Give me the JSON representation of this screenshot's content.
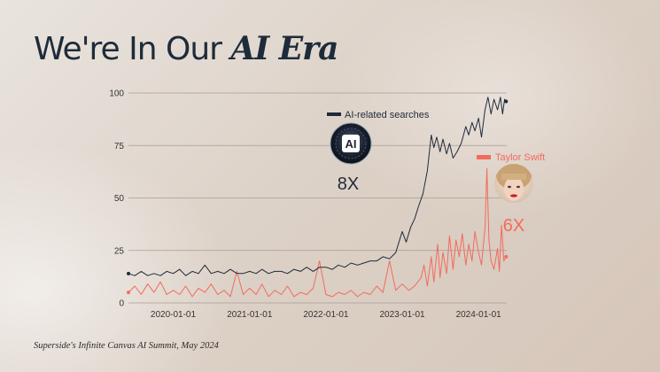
{
  "slide": {
    "title_plain": "We're In Our ",
    "title_emphasis": "AI Era",
    "footer": "Superside's Infinite Canvas AI Summit, May 2024"
  },
  "chart_data": {
    "type": "line",
    "ylim": [
      0,
      100
    ],
    "y_ticks": [
      0,
      25,
      50,
      75,
      100
    ],
    "x_ticks": [
      "2020-01-01",
      "2021-01-01",
      "2022-01-01",
      "2023-01-01",
      "2024-01-01"
    ],
    "x_range": [
      "2019-06-01",
      "2024-05-15"
    ],
    "grid": true,
    "legend_placement": "inline",
    "series": [
      {
        "name": "AI-related searches",
        "color": "#1f2a3a",
        "multiplier_label": "8X",
        "icon_label": "AI",
        "points": [
          [
            "2019-06-01",
            14
          ],
          [
            "2019-07-01",
            13
          ],
          [
            "2019-08-01",
            15
          ],
          [
            "2019-09-01",
            13
          ],
          [
            "2019-10-01",
            14
          ],
          [
            "2019-11-01",
            13
          ],
          [
            "2019-12-01",
            15
          ],
          [
            "2020-01-01",
            14
          ],
          [
            "2020-02-01",
            16
          ],
          [
            "2020-03-01",
            13
          ],
          [
            "2020-04-01",
            15
          ],
          [
            "2020-05-01",
            14
          ],
          [
            "2020-06-01",
            18
          ],
          [
            "2020-07-01",
            14
          ],
          [
            "2020-08-01",
            15
          ],
          [
            "2020-09-01",
            14
          ],
          [
            "2020-10-01",
            16
          ],
          [
            "2020-11-01",
            14
          ],
          [
            "2020-12-01",
            14
          ],
          [
            "2021-01-01",
            15
          ],
          [
            "2021-02-01",
            14
          ],
          [
            "2021-03-01",
            16
          ],
          [
            "2021-04-01",
            14
          ],
          [
            "2021-05-01",
            15
          ],
          [
            "2021-06-01",
            15
          ],
          [
            "2021-07-01",
            14
          ],
          [
            "2021-08-01",
            16
          ],
          [
            "2021-09-01",
            15
          ],
          [
            "2021-10-01",
            17
          ],
          [
            "2021-11-01",
            15
          ],
          [
            "2021-12-01",
            17
          ],
          [
            "2022-01-01",
            17
          ],
          [
            "2022-02-01",
            16
          ],
          [
            "2022-03-01",
            18
          ],
          [
            "2022-04-01",
            17
          ],
          [
            "2022-05-01",
            19
          ],
          [
            "2022-06-01",
            18
          ],
          [
            "2022-07-01",
            19
          ],
          [
            "2022-08-01",
            20
          ],
          [
            "2022-09-01",
            20
          ],
          [
            "2022-10-01",
            22
          ],
          [
            "2022-11-01",
            21
          ],
          [
            "2022-12-01",
            24
          ],
          [
            "2023-01-01",
            34
          ],
          [
            "2023-01-20",
            29
          ],
          [
            "2023-02-10",
            36
          ],
          [
            "2023-03-01",
            40
          ],
          [
            "2023-03-20",
            46
          ],
          [
            "2023-04-10",
            52
          ],
          [
            "2023-05-01",
            63
          ],
          [
            "2023-05-20",
            80
          ],
          [
            "2023-06-01",
            74
          ],
          [
            "2023-06-15",
            79
          ],
          [
            "2023-07-01",
            72
          ],
          [
            "2023-07-15",
            78
          ],
          [
            "2023-08-01",
            71
          ],
          [
            "2023-08-15",
            76
          ],
          [
            "2023-09-01",
            69
          ],
          [
            "2023-09-20",
            72
          ],
          [
            "2023-10-10",
            76
          ],
          [
            "2023-11-01",
            84
          ],
          [
            "2023-11-15",
            80
          ],
          [
            "2023-12-01",
            86
          ],
          [
            "2023-12-15",
            82
          ],
          [
            "2024-01-01",
            88
          ],
          [
            "2024-01-15",
            79
          ],
          [
            "2024-02-01",
            92
          ],
          [
            "2024-02-15",
            98
          ],
          [
            "2024-03-01",
            90
          ],
          [
            "2024-03-15",
            97
          ],
          [
            "2024-04-01",
            92
          ],
          [
            "2024-04-15",
            98
          ],
          [
            "2024-04-25",
            90
          ],
          [
            "2024-05-05",
            97
          ],
          [
            "2024-05-12",
            96
          ]
        ]
      },
      {
        "name": "Taylor Swift",
        "color": "#f26b5e",
        "multiplier_label": "6X",
        "points": [
          [
            "2019-06-01",
            5
          ],
          [
            "2019-07-01",
            8
          ],
          [
            "2019-08-01",
            4
          ],
          [
            "2019-09-01",
            9
          ],
          [
            "2019-10-01",
            5
          ],
          [
            "2019-11-01",
            10
          ],
          [
            "2019-12-01",
            4
          ],
          [
            "2020-01-01",
            6
          ],
          [
            "2020-02-01",
            4
          ],
          [
            "2020-03-01",
            8
          ],
          [
            "2020-04-01",
            3
          ],
          [
            "2020-05-01",
            7
          ],
          [
            "2020-06-01",
            5
          ],
          [
            "2020-07-01",
            9
          ],
          [
            "2020-08-01",
            4
          ],
          [
            "2020-09-01",
            6
          ],
          [
            "2020-10-01",
            3
          ],
          [
            "2020-11-01",
            15
          ],
          [
            "2020-12-01",
            4
          ],
          [
            "2021-01-01",
            7
          ],
          [
            "2021-02-01",
            4
          ],
          [
            "2021-03-01",
            9
          ],
          [
            "2021-04-01",
            3
          ],
          [
            "2021-05-01",
            6
          ],
          [
            "2021-06-01",
            4
          ],
          [
            "2021-07-01",
            8
          ],
          [
            "2021-08-01",
            3
          ],
          [
            "2021-09-01",
            5
          ],
          [
            "2021-10-01",
            4
          ],
          [
            "2021-11-01",
            7
          ],
          [
            "2021-12-01",
            20
          ],
          [
            "2022-01-01",
            4
          ],
          [
            "2022-02-01",
            3
          ],
          [
            "2022-03-01",
            5
          ],
          [
            "2022-04-01",
            4
          ],
          [
            "2022-05-01",
            6
          ],
          [
            "2022-06-01",
            3
          ],
          [
            "2022-07-01",
            5
          ],
          [
            "2022-08-01",
            4
          ],
          [
            "2022-09-01",
            8
          ],
          [
            "2022-10-01",
            5
          ],
          [
            "2022-11-01",
            20
          ],
          [
            "2022-12-01",
            6
          ],
          [
            "2023-01-01",
            9
          ],
          [
            "2023-02-01",
            6
          ],
          [
            "2023-03-01",
            8
          ],
          [
            "2023-04-01",
            12
          ],
          [
            "2023-04-15",
            18
          ],
          [
            "2023-05-01",
            8
          ],
          [
            "2023-05-20",
            22
          ],
          [
            "2023-06-01",
            10
          ],
          [
            "2023-06-20",
            28
          ],
          [
            "2023-07-01",
            12
          ],
          [
            "2023-07-15",
            24
          ],
          [
            "2023-08-01",
            14
          ],
          [
            "2023-08-15",
            32
          ],
          [
            "2023-09-01",
            16
          ],
          [
            "2023-09-15",
            30
          ],
          [
            "2023-10-01",
            22
          ],
          [
            "2023-10-15",
            33
          ],
          [
            "2023-11-01",
            18
          ],
          [
            "2023-11-15",
            28
          ],
          [
            "2023-12-01",
            20
          ],
          [
            "2023-12-15",
            34
          ],
          [
            "2024-01-01",
            24
          ],
          [
            "2024-01-15",
            18
          ],
          [
            "2024-02-01",
            36
          ],
          [
            "2024-02-10",
            64
          ],
          [
            "2024-02-20",
            30
          ],
          [
            "2024-03-01",
            20
          ],
          [
            "2024-03-15",
            16
          ],
          [
            "2024-04-01",
            26
          ],
          [
            "2024-04-10",
            15
          ],
          [
            "2024-04-20",
            37
          ],
          [
            "2024-05-01",
            20
          ],
          [
            "2024-05-12",
            22
          ]
        ]
      }
    ]
  }
}
